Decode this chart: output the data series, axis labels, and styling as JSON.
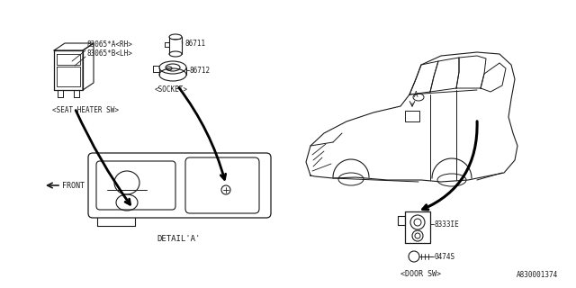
{
  "bg_color": "#ffffff",
  "line_color": "#1a1a1a",
  "fig_id": "A830001374",
  "labels": {
    "part1a": "83065*A<RH>",
    "part1b": "83065*B<LH>",
    "seat_heater": "<SEAT HEATER SW>",
    "part2": "86711",
    "part3": "86712",
    "socket": "<SOCKET>",
    "front": "FRONT",
    "detail": "DETAIL'A'",
    "door_sw_part1": "8333IE",
    "door_sw_part2": "0474S",
    "door_sw": "<DOOR SW>",
    "detail_a_marker": "A"
  }
}
